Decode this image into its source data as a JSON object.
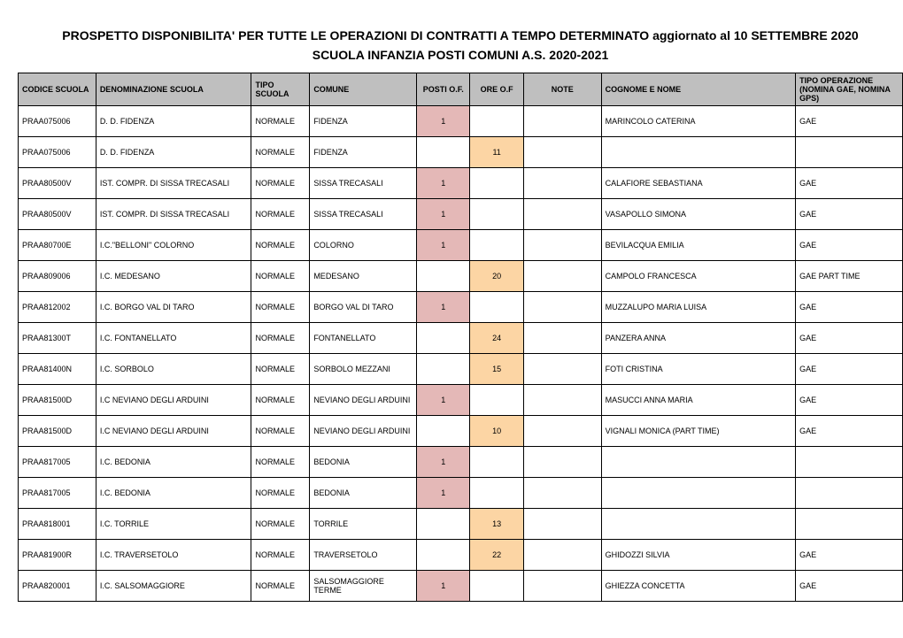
{
  "header": {
    "title": "PROSPETTO DISPONIBILITA' PER TUTTE LE OPERAZIONI DI CONTRATTI A TEMPO DETERMINATO aggiornato al  10 SETTEMBRE 2020",
    "subtitle": "SCUOLA INFANZIA POSTI COMUNI A.S. 2020-2021"
  },
  "colors": {
    "header_bg": "#bfbfbf",
    "posti_bg": "#e4b8b7",
    "ore_bg": "#fcd5a4",
    "border": "#000000",
    "page_bg": "#ffffff"
  },
  "columns": [
    "CODICE SCUOLA",
    "DENOMINAZIONE SCUOLA",
    "TIPO SCUOLA",
    "COMUNE",
    "POSTI O.F.",
    "ORE O.F",
    "NOTE",
    "COGNOME E NOME",
    "TIPO OPERAZIONE (NOMINA GAE, NOMINA GPS)"
  ],
  "rows": [
    {
      "codice": "PRAA075006",
      "denom": "D. D.  FIDENZA",
      "tipo": "NORMALE",
      "comune": "FIDENZA",
      "posti": "1",
      "ore": "",
      "note": "",
      "cognome": "MARINCOLO CATERINA",
      "oper": "GAE"
    },
    {
      "codice": "PRAA075006",
      "denom": "D. D.  FIDENZA",
      "tipo": "NORMALE",
      "comune": "FIDENZA",
      "posti": "",
      "ore": "11",
      "note": "",
      "cognome": "",
      "oper": ""
    },
    {
      "codice": "PRAA80500V",
      "denom": "IST. COMPR. DI SISSA TRECASALI",
      "tipo": "NORMALE",
      "comune": "SISSA TRECASALI",
      "posti": "1",
      "ore": "",
      "note": "",
      "cognome": "CALAFIORE SEBASTIANA",
      "oper": "GAE"
    },
    {
      "codice": "PRAA80500V",
      "denom": "IST. COMPR. DI SISSA TRECASALI",
      "tipo": "NORMALE",
      "comune": "SISSA TRECASALI",
      "posti": "1",
      "ore": "",
      "note": "",
      "cognome": "VASAPOLLO SIMONA",
      "oper": "GAE"
    },
    {
      "codice": "PRAA80700E",
      "denom": "I.C.\"BELLONI\"  COLORNO",
      "tipo": "NORMALE",
      "comune": "COLORNO",
      "posti": "1",
      "ore": "",
      "note": "",
      "cognome": "BEVILACQUA EMILIA",
      "oper": "GAE"
    },
    {
      "codice": "PRAA809006",
      "denom": "I.C. MEDESANO",
      "tipo": "NORMALE",
      "comune": "MEDESANO",
      "posti": "",
      "ore": "20",
      "note": "",
      "cognome": "CAMPOLO FRANCESCA",
      "oper": "GAE PART TIME"
    },
    {
      "codice": "PRAA812002",
      "denom": "I.C. BORGO VAL DI TARO",
      "tipo": "NORMALE",
      "comune": "BORGO VAL DI TARO",
      "posti": "1",
      "ore": "",
      "note": "",
      "cognome": "MUZZALUPO MARIA LUISA",
      "oper": "GAE"
    },
    {
      "codice": "PRAA81300T",
      "denom": "I.C.  FONTANELLATO",
      "tipo": "NORMALE",
      "comune": "FONTANELLATO",
      "posti": "",
      "ore": "24",
      "note": "",
      "cognome": "PANZERA ANNA",
      "oper": "GAE"
    },
    {
      "codice": "PRAA81400N",
      "denom": "I.C. SORBOLO",
      "tipo": "NORMALE",
      "comune": "SORBOLO MEZZANI",
      "posti": "",
      "ore": "15",
      "note": "",
      "cognome": "FOTI CRISTINA",
      "oper": "GAE"
    },
    {
      "codice": "PRAA81500D",
      "denom": "I.C NEVIANO DEGLI  ARDUINI",
      "tipo": "NORMALE",
      "comune": "NEVIANO DEGLI ARDUINI",
      "posti": "1",
      "ore": "",
      "note": "",
      "cognome": "MASUCCI ANNA MARIA",
      "oper": "GAE"
    },
    {
      "codice": "PRAA81500D",
      "denom": "I.C NEVIANO DEGLI  ARDUINI",
      "tipo": "NORMALE",
      "comune": "NEVIANO DEGLI ARDUINI",
      "posti": "",
      "ore": "10",
      "note": "",
      "cognome": "VIGNALI MONICA (PART TIME)",
      "oper": "GAE"
    },
    {
      "codice": "PRAA817005",
      "denom": "I.C.  BEDONIA",
      "tipo": "NORMALE",
      "comune": "BEDONIA",
      "posti": "1",
      "ore": "",
      "note": "",
      "cognome": "",
      "oper": ""
    },
    {
      "codice": "PRAA817005",
      "denom": "I.C.  BEDONIA",
      "tipo": "NORMALE",
      "comune": "BEDONIA",
      "posti": "1",
      "ore": "",
      "note": "",
      "cognome": "",
      "oper": ""
    },
    {
      "codice": "PRAA818001",
      "denom": "I.C.  TORRILE",
      "tipo": "NORMALE",
      "comune": "TORRILE",
      "posti": "",
      "ore": "13",
      "note": "",
      "cognome": "",
      "oper": ""
    },
    {
      "codice": "PRAA81900R",
      "denom": "I.C. TRAVERSETOLO",
      "tipo": "NORMALE",
      "comune": "TRAVERSETOLO",
      "posti": "",
      "ore": "22",
      "note": "",
      "cognome": "GHIDOZZI SILVIA",
      "oper": "GAE"
    },
    {
      "codice": "PRAA820001",
      "denom": "I.C. SALSOMAGGIORE",
      "tipo": "NORMALE",
      "comune": "SALSOMAGGIORE TERME",
      "posti": "1",
      "ore": "",
      "note": "",
      "cognome": "GHIEZZA CONCETTA",
      "oper": "GAE"
    }
  ]
}
